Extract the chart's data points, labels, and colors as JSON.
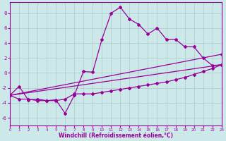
{
  "xlabel": "Windchill (Refroidissement éolien,°C)",
  "xlim": [
    0,
    23
  ],
  "ylim": [
    -7,
    9.5
  ],
  "xticks": [
    0,
    1,
    2,
    3,
    4,
    5,
    6,
    7,
    8,
    9,
    10,
    11,
    12,
    13,
    14,
    15,
    16,
    17,
    18,
    19,
    20,
    21,
    22,
    23
  ],
  "yticks": [
    -6,
    -4,
    -2,
    0,
    2,
    4,
    6,
    8
  ],
  "bg_color": "#cce8e8",
  "grid_color": "#aacccc",
  "line_color": "#990099",
  "line1_x": [
    0,
    1,
    2,
    3,
    4,
    5,
    6,
    7,
    8,
    9,
    10,
    11,
    12,
    13,
    14,
    15,
    16,
    17,
    18,
    19,
    20,
    21,
    22,
    23
  ],
  "line1_y": [
    -3.0,
    -1.8,
    -3.6,
    -3.5,
    -3.7,
    -3.6,
    -5.4,
    -3.0,
    0.2,
    0.1,
    4.5,
    8.0,
    8.8,
    7.2,
    6.5,
    5.2,
    6.0,
    4.5,
    4.5,
    3.5,
    3.5,
    2.0,
    1.0,
    1.1
  ],
  "line2_x": [
    0,
    1,
    2,
    3,
    4,
    5,
    6,
    7,
    8,
    9,
    10,
    11,
    12,
    13,
    14,
    15,
    16,
    17,
    18,
    19,
    20,
    21,
    22,
    23
  ],
  "line2_y": [
    -3.0,
    -3.5,
    -3.5,
    -3.7,
    -3.7,
    -3.7,
    -3.5,
    -2.8,
    -2.8,
    -2.8,
    -2.6,
    -2.4,
    -2.2,
    -2.0,
    -1.8,
    -1.6,
    -1.4,
    -1.2,
    -0.9,
    -0.6,
    -0.2,
    0.2,
    0.6,
    1.1
  ],
  "line3_x": [
    0,
    23
  ],
  "line3_y": [
    -3.0,
    1.1
  ],
  "line4_x": [
    0,
    23
  ],
  "line4_y": [
    -3.0,
    2.5
  ],
  "marker": "D",
  "marker_size": 2.0,
  "line_width": 0.9
}
